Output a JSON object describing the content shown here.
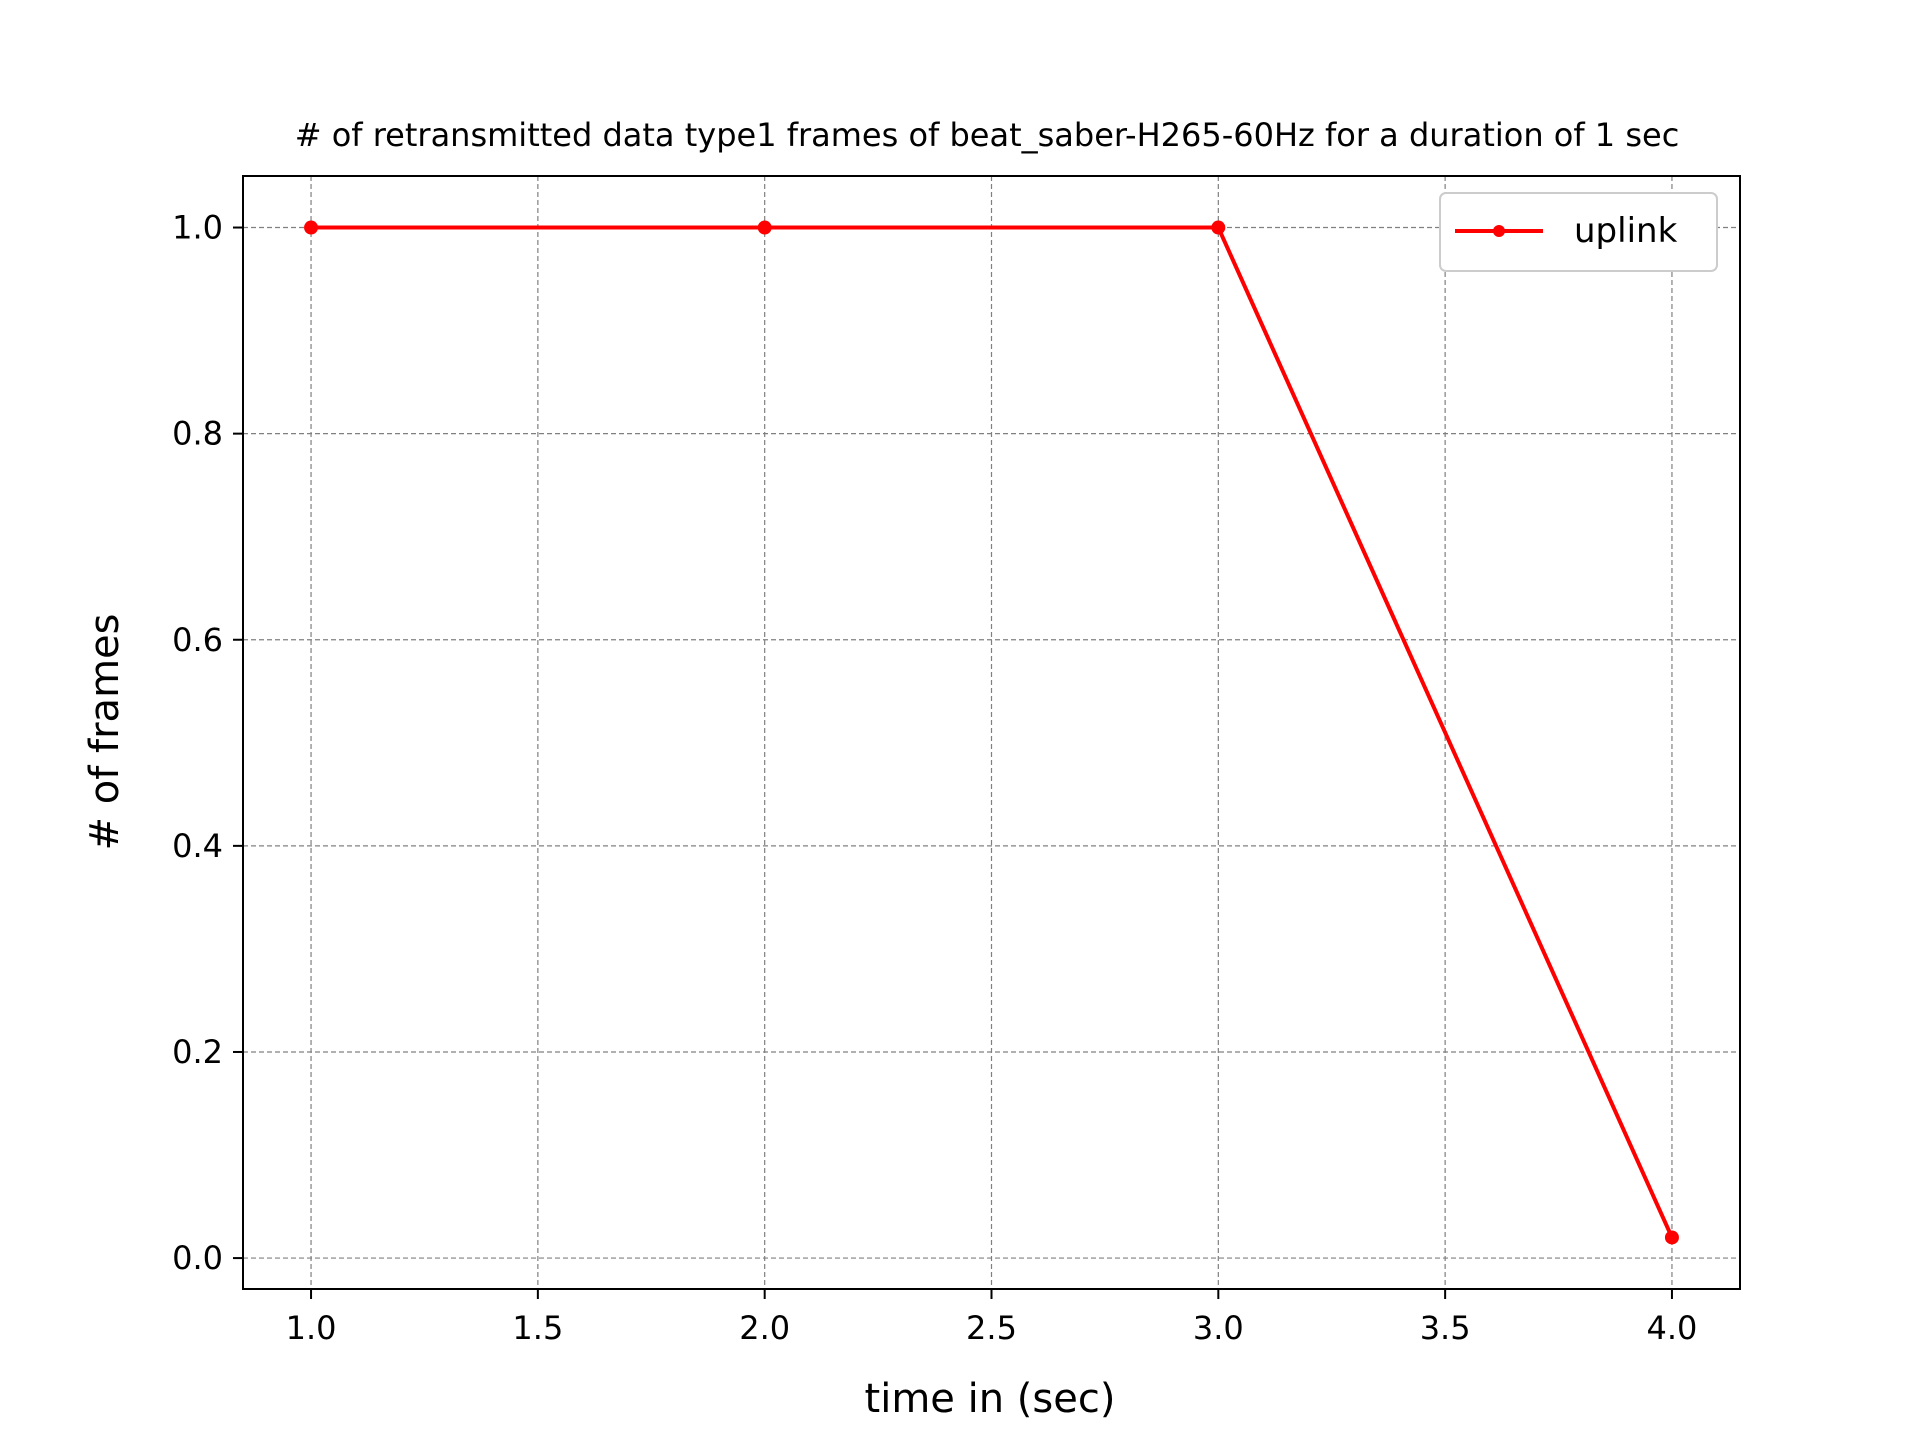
{
  "chart_data": {
    "type": "line",
    "title": "# of retransmitted data type1 frames of beat_saber-H265-60Hz for a duration of 1 sec",
    "xlabel": "time in (sec)",
    "ylabel": "# of frames",
    "xlim": [
      0.85,
      4.15
    ],
    "ylim": [
      -0.03,
      1.05
    ],
    "xticks": [
      1.0,
      1.5,
      2.0,
      2.5,
      3.0,
      3.5,
      4.0
    ],
    "xtick_labels": [
      "1.0",
      "1.5",
      "2.0",
      "2.5",
      "3.0",
      "3.5",
      "4.0"
    ],
    "yticks": [
      0.0,
      0.2,
      0.4,
      0.6,
      0.8,
      1.0
    ],
    "ytick_labels": [
      "0.0",
      "0.2",
      "0.4",
      "0.6",
      "0.8",
      "1.0"
    ],
    "grid": true,
    "legend_position": "top-right",
    "series": [
      {
        "name": "uplink",
        "color": "#ff0000",
        "marker": "dot",
        "x": [
          1.0,
          2.0,
          3.0,
          4.0
        ],
        "y": [
          1.0,
          1.0,
          1.0,
          0.02
        ]
      }
    ]
  }
}
